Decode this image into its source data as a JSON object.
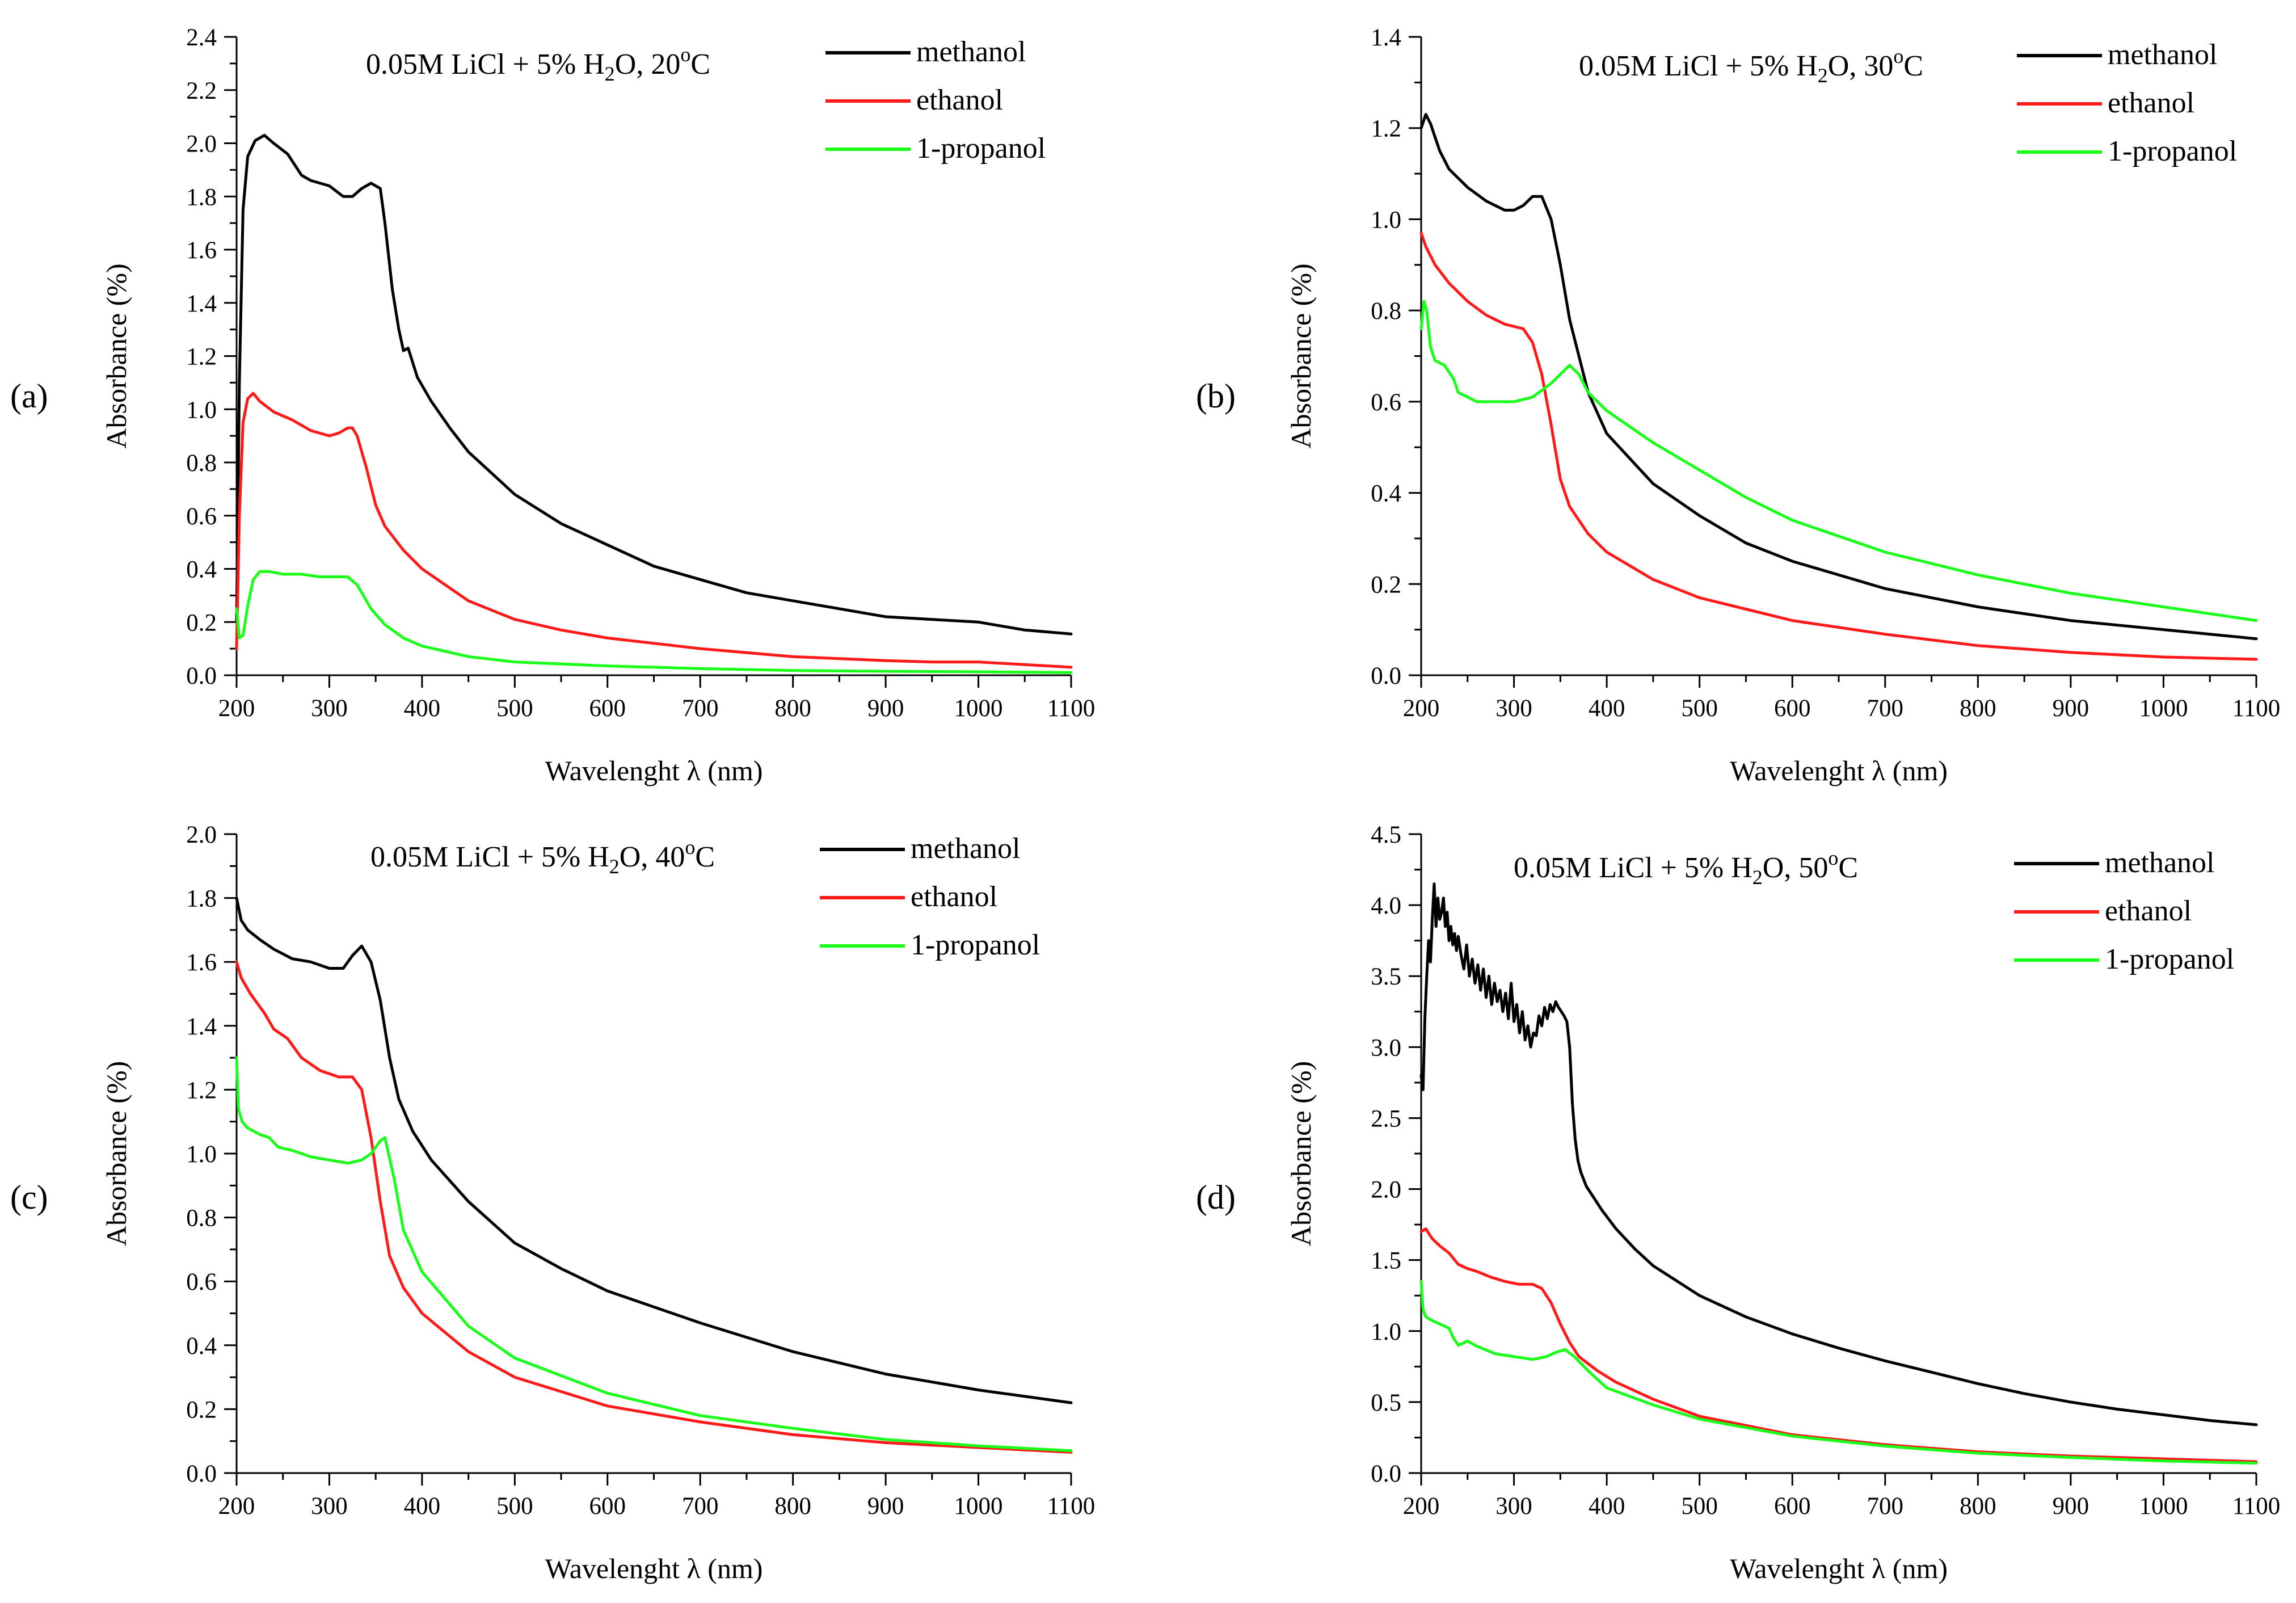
{
  "colors": {
    "methanol": "#000000",
    "ethanol": "#ff1a1a",
    "1-propanol": "#1aff1a"
  },
  "chart_data": [
    {
      "panel": "(a)",
      "type": "line",
      "title_parts": [
        "0.05M LiCl + 5% H",
        "2",
        "O, 20",
        "o",
        "C"
      ],
      "xlabel": "Wavelenght λ (nm)",
      "ylabel": "Absorbance (%)",
      "xlim": [
        200,
        1100
      ],
      "ylim": [
        0,
        2.4
      ],
      "xticks": [
        200,
        300,
        400,
        500,
        600,
        700,
        800,
        900,
        1000,
        1100
      ],
      "yticks": [
        0.0,
        0.2,
        0.4,
        0.6,
        0.8,
        1.0,
        1.2,
        1.4,
        1.6,
        1.8,
        2.0,
        2.2,
        2.4
      ],
      "ytick_labels": [
        "0.0",
        "0.2",
        "0.4",
        "0.6",
        "0.8",
        "1.0",
        "1.2",
        "1.4",
        "1.6",
        "1.8",
        "2.0",
        "2.2",
        "2.4"
      ],
      "legend": "top-right",
      "grid": false,
      "series": [
        {
          "name": "methanol",
          "x": [
            200,
            203,
            207,
            212,
            220,
            230,
            240,
            255,
            270,
            280,
            300,
            315,
            325,
            335,
            345,
            355,
            360,
            368,
            375,
            380,
            385,
            395,
            410,
            430,
            450,
            500,
            550,
            600,
            650,
            700,
            750,
            800,
            850,
            900,
            950,
            1000,
            1050,
            1100
          ],
          "y": [
            0.2,
            1.1,
            1.75,
            1.95,
            2.01,
            2.03,
            2.0,
            1.96,
            1.88,
            1.86,
            1.84,
            1.8,
            1.8,
            1.83,
            1.85,
            1.83,
            1.7,
            1.45,
            1.3,
            1.22,
            1.23,
            1.12,
            1.03,
            0.93,
            0.84,
            0.68,
            0.57,
            0.49,
            0.41,
            0.36,
            0.31,
            0.28,
            0.25,
            0.22,
            0.21,
            0.2,
            0.17,
            0.155
          ]
        },
        {
          "name": "ethanol",
          "x": [
            200,
            203,
            207,
            212,
            218,
            225,
            240,
            260,
            280,
            300,
            310,
            320,
            325,
            330,
            340,
            350,
            360,
            380,
            400,
            450,
            500,
            550,
            600,
            700,
            800,
            900,
            950,
            1000,
            1050,
            1100
          ],
          "y": [
            0.1,
            0.6,
            0.95,
            1.04,
            1.06,
            1.03,
            0.99,
            0.96,
            0.92,
            0.9,
            0.91,
            0.93,
            0.93,
            0.9,
            0.78,
            0.64,
            0.56,
            0.47,
            0.4,
            0.28,
            0.21,
            0.17,
            0.14,
            0.1,
            0.07,
            0.055,
            0.05,
            0.05,
            0.04,
            0.03
          ]
        },
        {
          "name": "1-propanol",
          "x": [
            200,
            203,
            207,
            212,
            218,
            225,
            235,
            250,
            270,
            290,
            300,
            310,
            320,
            330,
            345,
            360,
            380,
            400,
            450,
            500,
            600,
            700,
            800,
            900,
            1000,
            1100
          ],
          "y": [
            0.25,
            0.14,
            0.15,
            0.26,
            0.36,
            0.39,
            0.39,
            0.38,
            0.38,
            0.37,
            0.37,
            0.37,
            0.37,
            0.34,
            0.25,
            0.19,
            0.14,
            0.11,
            0.07,
            0.05,
            0.035,
            0.025,
            0.018,
            0.015,
            0.013,
            0.01
          ]
        }
      ]
    },
    {
      "panel": "(b)",
      "type": "line",
      "title_parts": [
        "0.05M LiCl + 5% H",
        "2",
        "O, 30",
        "o",
        "C"
      ],
      "xlabel": "Wavelenght λ (nm)",
      "ylabel": "Absorbance (%)",
      "xlim": [
        200,
        1100
      ],
      "ylim": [
        0,
        1.4
      ],
      "xticks": [
        200,
        300,
        400,
        500,
        600,
        700,
        800,
        900,
        1000,
        1100
      ],
      "yticks": [
        0.0,
        0.2,
        0.4,
        0.6,
        0.8,
        1.0,
        1.2,
        1.4
      ],
      "ytick_labels": [
        "0.0",
        "0.2",
        "0.4",
        "0.6",
        "0.8",
        "1.0",
        "1.2",
        "1.4"
      ],
      "legend": "top-right",
      "grid": false,
      "series": [
        {
          "name": "methanol",
          "x": [
            200,
            205,
            210,
            220,
            230,
            250,
            270,
            290,
            300,
            310,
            320,
            330,
            340,
            350,
            360,
            380,
            400,
            450,
            500,
            550,
            600,
            700,
            800,
            900,
            1000,
            1100
          ],
          "y": [
            1.2,
            1.23,
            1.21,
            1.15,
            1.11,
            1.07,
            1.04,
            1.02,
            1.02,
            1.03,
            1.05,
            1.05,
            1.0,
            0.9,
            0.78,
            0.62,
            0.53,
            0.42,
            0.35,
            0.29,
            0.25,
            0.19,
            0.15,
            0.12,
            0.1,
            0.08
          ]
        },
        {
          "name": "ethanol",
          "x": [
            200,
            205,
            215,
            230,
            250,
            270,
            290,
            310,
            320,
            330,
            340,
            350,
            360,
            380,
            400,
            450,
            500,
            600,
            700,
            800,
            900,
            1000,
            1100
          ],
          "y": [
            0.97,
            0.94,
            0.9,
            0.86,
            0.82,
            0.79,
            0.77,
            0.76,
            0.73,
            0.66,
            0.55,
            0.43,
            0.37,
            0.31,
            0.27,
            0.21,
            0.17,
            0.12,
            0.09,
            0.065,
            0.05,
            0.04,
            0.035
          ]
        },
        {
          "name": "1-propanol",
          "x": [
            200,
            203,
            206,
            210,
            215,
            225,
            235,
            240,
            250,
            260,
            280,
            300,
            320,
            340,
            350,
            360,
            370,
            380,
            400,
            450,
            500,
            550,
            600,
            700,
            800,
            900,
            1000,
            1100
          ],
          "y": [
            0.76,
            0.82,
            0.8,
            0.72,
            0.69,
            0.68,
            0.65,
            0.62,
            0.61,
            0.6,
            0.6,
            0.6,
            0.61,
            0.64,
            0.66,
            0.68,
            0.66,
            0.62,
            0.58,
            0.51,
            0.45,
            0.39,
            0.34,
            0.27,
            0.22,
            0.18,
            0.15,
            0.12
          ]
        }
      ]
    },
    {
      "panel": "(c)",
      "type": "line",
      "title_parts": [
        "0.05M LiCl + 5% H",
        "2",
        "O, 40",
        "o",
        "C"
      ],
      "xlabel": "Wavelenght λ (nm)",
      "ylabel": "Absorbance (%)",
      "xlim": [
        200,
        1100
      ],
      "ylim": [
        0,
        2.0
      ],
      "xticks": [
        200,
        300,
        400,
        500,
        600,
        700,
        800,
        900,
        1000,
        1100
      ],
      "yticks": [
        0.0,
        0.2,
        0.4,
        0.6,
        0.8,
        1.0,
        1.2,
        1.4,
        1.6,
        1.8,
        2.0
      ],
      "ytick_labels": [
        "0.0",
        "0.2",
        "0.4",
        "0.6",
        "0.8",
        "1.0",
        "1.2",
        "1.4",
        "1.6",
        "1.8",
        "2.0"
      ],
      "legend": "top-right",
      "grid": false,
      "series": [
        {
          "name": "methanol",
          "x": [
            200,
            205,
            212,
            225,
            240,
            260,
            280,
            300,
            315,
            325,
            335,
            345,
            355,
            365,
            375,
            390,
            410,
            450,
            500,
            550,
            600,
            700,
            800,
            900,
            1000,
            1100
          ],
          "y": [
            1.8,
            1.73,
            1.7,
            1.67,
            1.64,
            1.61,
            1.6,
            1.58,
            1.58,
            1.62,
            1.65,
            1.6,
            1.48,
            1.3,
            1.17,
            1.07,
            0.98,
            0.85,
            0.72,
            0.64,
            0.57,
            0.47,
            0.38,
            0.31,
            0.26,
            0.22
          ]
        },
        {
          "name": "ethanol",
          "x": [
            200,
            205,
            215,
            230,
            240,
            255,
            270,
            290,
            310,
            325,
            335,
            345,
            355,
            365,
            380,
            400,
            450,
            500,
            600,
            700,
            800,
            900,
            1000,
            1100
          ],
          "y": [
            1.6,
            1.55,
            1.5,
            1.44,
            1.39,
            1.36,
            1.3,
            1.26,
            1.24,
            1.24,
            1.2,
            1.05,
            0.85,
            0.68,
            0.58,
            0.5,
            0.38,
            0.3,
            0.21,
            0.16,
            0.12,
            0.095,
            0.08,
            0.065
          ]
        },
        {
          "name": "1-propanol",
          "x": [
            200,
            202,
            206,
            212,
            225,
            235,
            245,
            260,
            280,
            300,
            320,
            335,
            345,
            355,
            360,
            370,
            380,
            400,
            450,
            500,
            600,
            700,
            800,
            900,
            1000,
            1100
          ],
          "y": [
            1.3,
            1.14,
            1.1,
            1.08,
            1.06,
            1.05,
            1.02,
            1.01,
            0.99,
            0.98,
            0.97,
            0.98,
            1.0,
            1.04,
            1.05,
            0.92,
            0.76,
            0.63,
            0.46,
            0.36,
            0.25,
            0.18,
            0.14,
            0.105,
            0.085,
            0.07
          ]
        }
      ]
    },
    {
      "panel": "(d)",
      "type": "line",
      "title_parts": [
        "0.05M LiCl + 5% H",
        "2",
        "O, 50",
        "o",
        "C"
      ],
      "xlabel": "Wavelenght λ (nm)",
      "ylabel": "Absorbance (%)",
      "xlim": [
        200,
        1100
      ],
      "ylim": [
        0,
        4.5
      ],
      "xticks": [
        200,
        300,
        400,
        500,
        600,
        700,
        800,
        900,
        1000,
        1100
      ],
      "yticks": [
        0.0,
        0.5,
        1.0,
        1.5,
        2.0,
        2.5,
        3.0,
        3.5,
        4.0,
        4.5
      ],
      "ytick_labels": [
        "0.0",
        "0.5",
        "1.0",
        "1.5",
        "2.0",
        "2.5",
        "3.0",
        "3.5",
        "4.0",
        "4.5"
      ],
      "legend": "top-right",
      "grid": false,
      "series": [
        {
          "name": "methanol",
          "x": [
            200,
            202,
            204,
            206,
            208,
            210,
            212,
            214,
            216,
            218,
            220,
            222,
            224,
            226,
            228,
            230,
            232,
            234,
            236,
            238,
            240,
            243,
            246,
            249,
            252,
            255,
            258,
            261,
            264,
            267,
            270,
            273,
            276,
            279,
            282,
            285,
            288,
            291,
            294,
            297,
            300,
            303,
            306,
            309,
            312,
            315,
            318,
            321,
            324,
            327,
            330,
            333,
            336,
            339,
            342,
            345,
            348,
            351,
            354,
            357,
            360,
            363,
            366,
            369,
            372,
            378,
            385,
            395,
            410,
            430,
            450,
            500,
            550,
            600,
            650,
            700,
            750,
            800,
            850,
            900,
            950,
            1000,
            1050,
            1100
          ],
          "y": [
            2.8,
            2.7,
            3.2,
            3.5,
            3.75,
            3.6,
            3.9,
            4.15,
            3.85,
            4.05,
            3.9,
            3.95,
            4.05,
            3.85,
            3.95,
            3.75,
            3.85,
            3.72,
            3.8,
            3.68,
            3.78,
            3.65,
            3.55,
            3.72,
            3.5,
            3.62,
            3.45,
            3.58,
            3.4,
            3.55,
            3.35,
            3.5,
            3.3,
            3.45,
            3.32,
            3.4,
            3.25,
            3.38,
            3.2,
            3.45,
            3.18,
            3.3,
            3.1,
            3.25,
            3.05,
            3.15,
            3.0,
            3.1,
            3.08,
            3.22,
            3.15,
            3.28,
            3.2,
            3.3,
            3.25,
            3.32,
            3.28,
            3.25,
            3.22,
            3.18,
            3.0,
            2.6,
            2.35,
            2.2,
            2.12,
            2.02,
            1.95,
            1.85,
            1.72,
            1.58,
            1.46,
            1.25,
            1.1,
            0.98,
            0.88,
            0.79,
            0.71,
            0.63,
            0.56,
            0.5,
            0.45,
            0.41,
            0.37,
            0.34
          ]
        },
        {
          "name": "ethanol",
          "x": [
            200,
            205,
            212,
            220,
            230,
            240,
            250,
            260,
            275,
            290,
            305,
            320,
            330,
            340,
            350,
            360,
            370,
            390,
            410,
            450,
            500,
            600,
            700,
            800,
            900,
            1000,
            1100
          ],
          "y": [
            1.7,
            1.72,
            1.65,
            1.6,
            1.55,
            1.47,
            1.44,
            1.42,
            1.38,
            1.35,
            1.33,
            1.33,
            1.3,
            1.2,
            1.05,
            0.92,
            0.82,
            0.72,
            0.64,
            0.52,
            0.4,
            0.27,
            0.2,
            0.15,
            0.12,
            0.1,
            0.08
          ]
        },
        {
          "name": "1-propanol",
          "x": [
            200,
            202,
            205,
            210,
            220,
            230,
            235,
            240,
            250,
            258,
            265,
            280,
            300,
            320,
            335,
            345,
            355,
            365,
            380,
            400,
            450,
            500,
            600,
            700,
            800,
            900,
            1000,
            1100
          ],
          "y": [
            1.35,
            1.15,
            1.1,
            1.08,
            1.05,
            1.02,
            0.95,
            0.9,
            0.93,
            0.9,
            0.88,
            0.84,
            0.82,
            0.8,
            0.82,
            0.85,
            0.87,
            0.82,
            0.72,
            0.6,
            0.48,
            0.38,
            0.26,
            0.19,
            0.14,
            0.11,
            0.085,
            0.07
          ]
        }
      ]
    }
  ]
}
